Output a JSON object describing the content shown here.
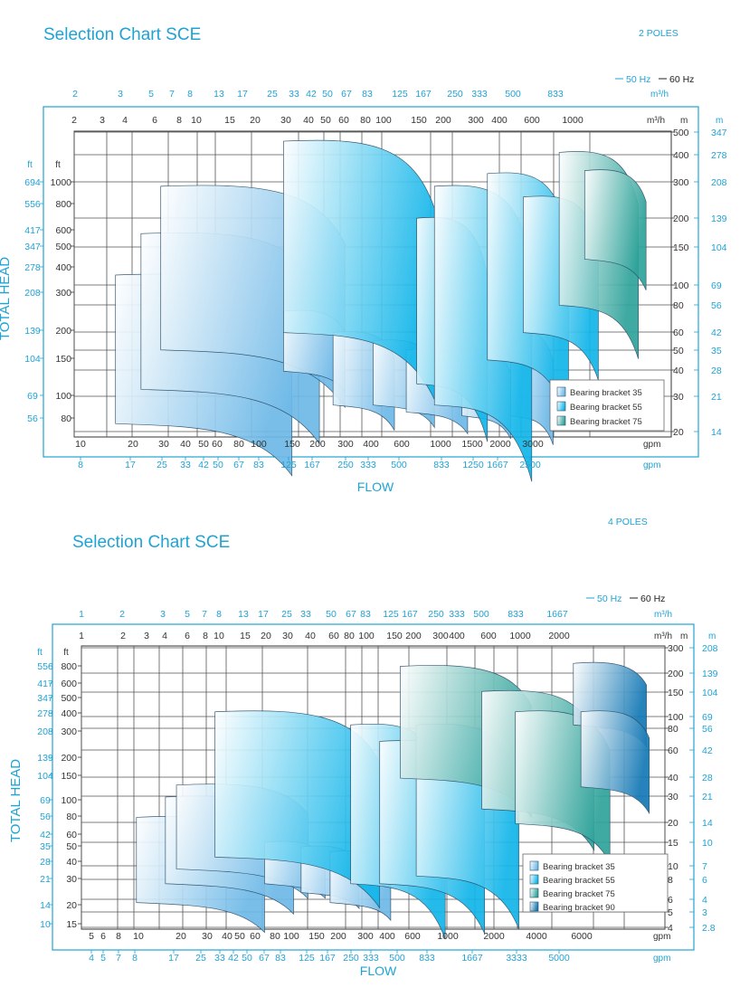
{
  "charts": [
    {
      "id": "c1",
      "title": "Selection Chart SCE",
      "poles": "2 POLES",
      "legend_freq": {
        "hz50": "50 Hz",
        "hz60": "60 Hz"
      },
      "top_unit": "m³/h",
      "inner_unit": "m³/h",
      "right_unit_m": "m",
      "right_unit_m_outer": "m",
      "left_unit_ft_outer": "ft",
      "left_unit_ft": "ft",
      "gpm_unit": "gpm",
      "gpm_unit_outer": "gpm",
      "flow_label": "FLOW",
      "y_label": "TOTAL HEAD",
      "colors": {
        "accent": "#1fa3d4",
        "axis": "#333333",
        "grid": "#555555",
        "b35": "#6eb9e8",
        "b55": "#12b6ea",
        "b75": "#2fa39a"
      },
      "m_range": [
        20,
        500
      ],
      "top_ticks": [
        "2",
        "3",
        "5",
        "7",
        "8",
        "13",
        "17",
        "25",
        "33",
        "42",
        "50",
        "67",
        "83",
        "125",
        "167",
        "250",
        "333",
        "500",
        "833"
      ],
      "inner_top_ticks": [
        "2",
        "3",
        "4",
        "6",
        "8",
        "10",
        "15",
        "20",
        "30",
        "40",
        "50",
        "60",
        "80",
        "100",
        "150",
        "200",
        "300",
        "400",
        "600",
        "1000"
      ],
      "right_m_ticks": [
        "500",
        "400",
        "300",
        "200",
        "150",
        "100",
        "80",
        "60",
        "50",
        "40",
        "30",
        "20"
      ],
      "right_m_outer_ticks": [
        "347",
        "278",
        "208",
        "139",
        "104",
        "69",
        "56",
        "42",
        "35",
        "28",
        "21",
        "14"
      ],
      "left_ft_ticks": [
        "1000",
        "800",
        "600",
        "500",
        "400",
        "300",
        "200",
        "150",
        "100",
        "80"
      ],
      "left_ft_outer_ticks": [
        "694",
        "556",
        "417",
        "347",
        "278",
        "208",
        "139",
        "104",
        "69",
        "56"
      ],
      "gpm_ticks": [
        "10",
        "20",
        "30",
        "40",
        "50",
        "60",
        "80",
        "100",
        "150",
        "200",
        "300",
        "400",
        "600",
        "1000",
        "1500",
        "2000",
        "3000"
      ],
      "gpm_outer_ticks": [
        "8",
        "17",
        "25",
        "33",
        "42",
        "50",
        "67",
        "83",
        "125",
        "167",
        "250",
        "333",
        "500",
        "833",
        "1250",
        "1667",
        "2500"
      ],
      "legend_items": [
        "Bearing bracket 35",
        "Bearing bracket 55",
        "Bearing bracket 75"
      ]
    },
    {
      "id": "c2",
      "title": "Selection Chart SCE",
      "poles": "4 POLES",
      "legend_freq": {
        "hz50": "50 Hz",
        "hz60": "60 Hz"
      },
      "top_unit": "m³/h",
      "inner_unit": "m³/h",
      "right_unit_m": "m",
      "right_unit_m_outer": "m",
      "left_unit_ft_outer": "ft",
      "left_unit_ft": "ft",
      "gpm_unit": "gpm",
      "gpm_unit_outer": "gpm",
      "flow_label": "FLOW",
      "y_label": "TOTAL   HEAD",
      "colors": {
        "accent": "#1fa3d4",
        "axis": "#333333",
        "grid": "#555555",
        "b35": "#6eb9e8",
        "b55": "#12b6ea",
        "b75": "#2fa39a",
        "b90": "#1378b5"
      },
      "m_range": [
        4,
        300
      ],
      "top_ticks": [
        "1",
        "2",
        "3",
        "5",
        "7",
        "8",
        "13",
        "17",
        "25",
        "33",
        "50",
        "67",
        "83",
        "125",
        "167",
        "250",
        "333",
        "500",
        "833",
        "1667"
      ],
      "inner_top_ticks": [
        "1",
        "2",
        "3",
        "4",
        "6",
        "8",
        "10",
        "15",
        "20",
        "30",
        "40",
        "60",
        "80",
        "100",
        "150",
        "200",
        "300",
        "400",
        "600",
        "1000",
        "2000"
      ],
      "right_m_ticks": [
        "300",
        "200",
        "150",
        "100",
        "80",
        "60",
        "40",
        "30",
        "20",
        "15",
        "10",
        "8",
        "6",
        "5",
        "4"
      ],
      "right_m_outer_ticks": [
        "208",
        "139",
        "104",
        "69",
        "56",
        "42",
        "28",
        "21",
        "14",
        "10",
        "7",
        "6",
        "4",
        "3",
        "2.8"
      ],
      "left_ft_ticks": [
        "800",
        "600",
        "500",
        "400",
        "300",
        "200",
        "150",
        "100",
        "80",
        "60",
        "50",
        "40",
        "30",
        "20",
        "15"
      ],
      "left_ft_outer_ticks": [
        "556",
        "417",
        "347",
        "278",
        "208",
        "139",
        "104",
        "69",
        "56",
        "42",
        "35",
        "28",
        "21",
        "14",
        "10"
      ],
      "gpm_ticks": [
        "5",
        "6",
        "8",
        "10",
        "20",
        "30",
        "40",
        "50",
        "60",
        "80",
        "100",
        "150",
        "200",
        "300",
        "400",
        "600",
        "1000",
        "2000",
        "4000",
        "6000"
      ],
      "gpm_outer_ticks": [
        "4",
        "5",
        "7",
        "8",
        "17",
        "25",
        "33",
        "42",
        "50",
        "67",
        "83",
        "125",
        "167",
        "250",
        "333",
        "500",
        "833",
        "1667",
        "3333",
        "5000"
      ],
      "legend_items": [
        "Bearing bracket 35",
        "Bearing bracket 55",
        "Bearing bracket 75",
        "Bearing bracket 90"
      ]
    }
  ],
  "chart_data": [
    {
      "type": "area",
      "title": "Selection Chart SCE",
      "subtitle": "2 POLES",
      "xlabel": "FLOW",
      "ylabel": "TOTAL HEAD",
      "x_scale": "log",
      "y_scale": "log",
      "x_unit": "m³/h",
      "y_unit": "m",
      "xlim": [
        2,
        1500
      ],
      "ylim": [
        20,
        500
      ],
      "legend": "bottom-right",
      "grid": true,
      "series": [
        {
          "name": "Bearing bracket 35",
          "color": "#6eb9e8",
          "regions": [
            {
              "q": [
                3,
                22
              ],
              "h": [
                23,
                110
              ]
            },
            {
              "q": [
                4,
                30
              ],
              "h": [
                33,
                170
              ]
            },
            {
              "q": [
                5,
                40
              ],
              "h": [
                50,
                280
              ]
            },
            {
              "q": [
                20,
                40
              ],
              "h": [
                40,
                75
              ]
            },
            {
              "q": [
                35,
                70
              ],
              "h": [
                28,
                60
              ]
            },
            {
              "q": [
                55,
                110
              ],
              "h": [
                28,
                55
              ]
            },
            {
              "q": [
                80,
                160
              ],
              "h": [
                26,
                50
              ]
            },
            {
              "q": [
                150,
                260
              ],
              "h": [
                25,
                50
              ]
            },
            {
              "q": [
                260,
                420
              ],
              "h": [
                25,
                60
              ]
            }
          ]
        },
        {
          "name": "Bearing bracket 55",
          "color": "#12b6ea",
          "regions": [
            {
              "q": [
                20,
                110
              ],
              "h": [
                60,
                450
              ]
            },
            {
              "q": [
                90,
                200
              ],
              "h": [
                35,
                200
              ]
            },
            {
              "q": [
                110,
                330
              ],
              "h": [
                28,
                280
              ]
            },
            {
              "q": [
                200,
                500
              ],
              "h": [
                45,
                320
              ]
            },
            {
              "q": [
                300,
                700
              ],
              "h": [
                60,
                250
              ]
            }
          ]
        },
        {
          "name": "Bearing bracket 75",
          "color": "#2fa39a",
          "regions": [
            {
              "q": [
                450,
                1100
              ],
              "h": [
                80,
                400
              ]
            },
            {
              "q": [
                600,
                1200
              ],
              "h": [
                130,
                330
              ]
            }
          ]
        }
      ]
    },
    {
      "type": "area",
      "title": "Selection Chart SCE",
      "subtitle": "4 POLES",
      "xlabel": "FLOW",
      "ylabel": "TOTAL HEAD",
      "x_scale": "log",
      "y_scale": "log",
      "x_unit": "m³/h",
      "y_unit": "m",
      "xlim": [
        1,
        3000
      ],
      "ylim": [
        4,
        300
      ],
      "legend": "bottom-right",
      "grid": true,
      "series": [
        {
          "name": "Bearing bracket 35",
          "color": "#6eb9e8",
          "regions": [
            {
              "q": [
                2,
                12
              ],
              "h": [
                6,
                22
              ]
            },
            {
              "q": [
                3,
                18
              ],
              "h": [
                8,
                30
              ]
            },
            {
              "q": [
                3.5,
                22
              ],
              "h": [
                10,
                36
              ]
            },
            {
              "q": [
                12,
                28
              ],
              "h": [
                8,
                15
              ]
            },
            {
              "q": [
                20,
                45
              ],
              "h": [
                7,
                14
              ]
            },
            {
              "q": [
                30,
                70
              ],
              "h": [
                6,
                13
              ]
            }
          ]
        },
        {
          "name": "Bearing bracket 55",
          "color": "#12b6ea",
          "regions": [
            {
              "q": [
                6,
                60
              ],
              "h": [
                12,
                110
              ]
            },
            {
              "q": [
                40,
                150
              ],
              "h": [
                8,
                90
              ]
            },
            {
              "q": [
                60,
                260
              ],
              "h": [
                8,
                70
              ]
            },
            {
              "q": [
                100,
                420
              ],
              "h": [
                9,
                90
              ]
            }
          ]
        },
        {
          "name": "Bearing bracket 75",
          "color": "#2fa39a",
          "regions": [
            {
              "q": [
                80,
                500
              ],
              "h": [
                40,
                220
              ]
            },
            {
              "q": [
                250,
                1200
              ],
              "h": [
                25,
                150
              ]
            },
            {
              "q": [
                400,
                1500
              ],
              "h": [
                20,
                110
              ]
            }
          ]
        },
        {
          "name": "Bearing bracket 90",
          "color": "#1378b5",
          "regions": [
            {
              "q": [
                900,
                2500
              ],
              "h": [
                90,
                230
              ]
            },
            {
              "q": [
                1000,
                2600
              ],
              "h": [
                35,
                110
              ]
            }
          ]
        }
      ]
    }
  ]
}
